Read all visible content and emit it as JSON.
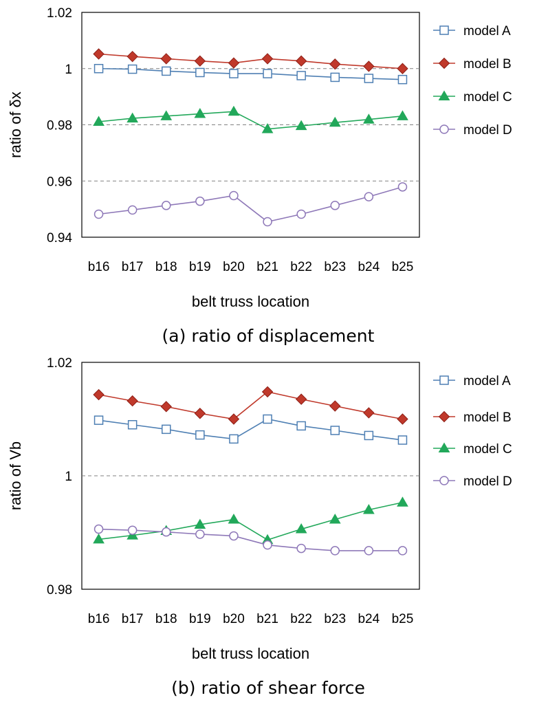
{
  "chart_data": [
    {
      "type": "line",
      "caption": "(a) ratio of displacement",
      "ylabel": "ratio of δx",
      "xlabel": "belt truss location",
      "ylim": [
        0.94,
        1.02
      ],
      "yticks": [
        0.94,
        0.96,
        0.98,
        1,
        1.02
      ],
      "ytick_labels": [
        "0.94",
        "0.96",
        "0.98",
        "1",
        "1.02"
      ],
      "gridlines": [
        0.96,
        0.98,
        1
      ],
      "categories": [
        "b16",
        "b17",
        "b18",
        "b19",
        "b20",
        "b21",
        "b22",
        "b23",
        "b24",
        "b25"
      ],
      "legend_position": "right",
      "series": [
        {
          "name": "model A",
          "marker": "square",
          "color": "#4e7fb3",
          "values": [
            1.0,
            0.9998,
            0.9991,
            0.9986,
            0.9982,
            0.9982,
            0.9975,
            0.9969,
            0.9965,
            0.9961
          ]
        },
        {
          "name": "model B",
          "marker": "diamond",
          "color": "#c0392b",
          "values": [
            1.0052,
            1.0043,
            1.0035,
            1.0027,
            1.002,
            1.0035,
            1.0027,
            1.0016,
            1.0008,
            1.0
          ]
        },
        {
          "name": "model C",
          "marker": "triangle",
          "color": "#22a85a",
          "values": [
            0.9811,
            0.9823,
            0.9831,
            0.9839,
            0.9847,
            0.9785,
            0.9796,
            0.9808,
            0.9819,
            0.9831
          ]
        },
        {
          "name": "model D",
          "marker": "circle",
          "color": "#8e78b8",
          "values": [
            0.9482,
            0.9497,
            0.9513,
            0.9528,
            0.9548,
            0.9455,
            0.9482,
            0.9513,
            0.9544,
            0.9579
          ]
        }
      ]
    },
    {
      "type": "line",
      "caption": "(b) ratio of shear force",
      "ylabel": "ratio of Vb",
      "xlabel": "belt truss location",
      "ylim": [
        0.98,
        1.02
      ],
      "yticks": [
        0.98,
        1,
        1.02
      ],
      "ytick_labels": [
        "0.98",
        "1",
        "1.02"
      ],
      "gridlines": [
        1
      ],
      "categories": [
        "b16",
        "b17",
        "b18",
        "b19",
        "b20",
        "b21",
        "b22",
        "b23",
        "b24",
        "b25"
      ],
      "legend_position": "right",
      "series": [
        {
          "name": "model A",
          "marker": "square",
          "color": "#4e7fb3",
          "values": [
            1.0098,
            1.009,
            1.0082,
            1.0072,
            1.0065,
            1.01,
            1.0088,
            1.008,
            1.0071,
            1.0063
          ]
        },
        {
          "name": "model B",
          "marker": "diamond",
          "color": "#c0392b",
          "values": [
            1.0143,
            1.0132,
            1.0122,
            1.011,
            1.01,
            1.0148,
            1.0135,
            1.0123,
            1.0111,
            1.01
          ]
        },
        {
          "name": "model C",
          "marker": "triangle",
          "color": "#22a85a",
          "values": [
            0.9888,
            0.9895,
            0.9903,
            0.9914,
            0.9923,
            0.9887,
            0.9906,
            0.9923,
            0.994,
            0.9953
          ]
        },
        {
          "name": "model D",
          "marker": "circle",
          "color": "#8e78b8",
          "values": [
            0.9906,
            0.9904,
            0.9901,
            0.9897,
            0.9894,
            0.9878,
            0.9872,
            0.9868,
            0.9868,
            0.9868
          ]
        }
      ]
    }
  ]
}
